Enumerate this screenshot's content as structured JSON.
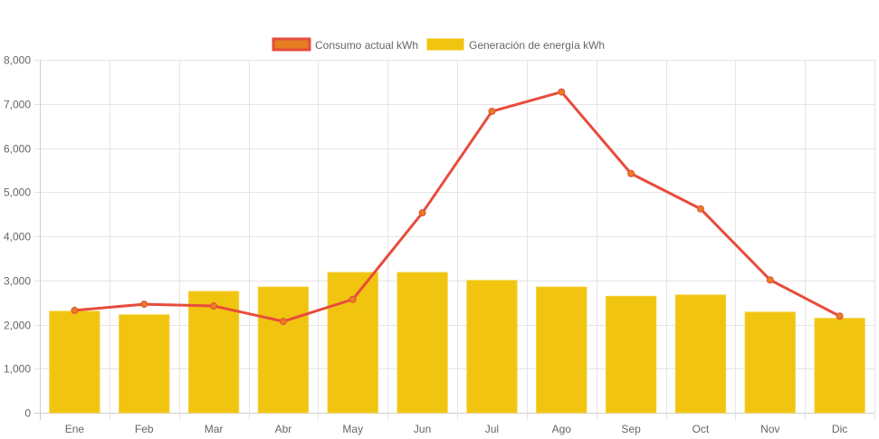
{
  "chart_data": {
    "type": "bar",
    "title": "",
    "xlabel": "",
    "ylabel": "",
    "ylim": [
      0,
      8000
    ],
    "yticks": [
      "0",
      "1,000",
      "2,000",
      "3,000",
      "4,000",
      "5,000",
      "6,000",
      "7,000",
      "8,000"
    ],
    "ytick_values": [
      0,
      1000,
      2000,
      3000,
      4000,
      5000,
      6000,
      7000,
      8000
    ],
    "grid": true,
    "legend_position": "top-center",
    "categories": [
      "Ene",
      "Feb",
      "Mar",
      "Abr",
      "May",
      "Jun",
      "Jul",
      "Ago",
      "Sep",
      "Oct",
      "Nov",
      "Dic"
    ],
    "series": [
      {
        "name": "Consumo actual kWh",
        "type": "line",
        "color": "#e74c3c",
        "point_color": "#e67e22",
        "values": [
          2320,
          2460,
          2420,
          2070,
          2570,
          4530,
          6830,
          7270,
          5420,
          4620,
          3010,
          2190
        ]
      },
      {
        "name": "Generación de energía kWh",
        "type": "bar",
        "color": "#f1c40f",
        "values": [
          2300,
          2220,
          2750,
          2850,
          3180,
          3180,
          3000,
          2850,
          2640,
          2670,
          2280,
          2140
        ]
      }
    ]
  }
}
